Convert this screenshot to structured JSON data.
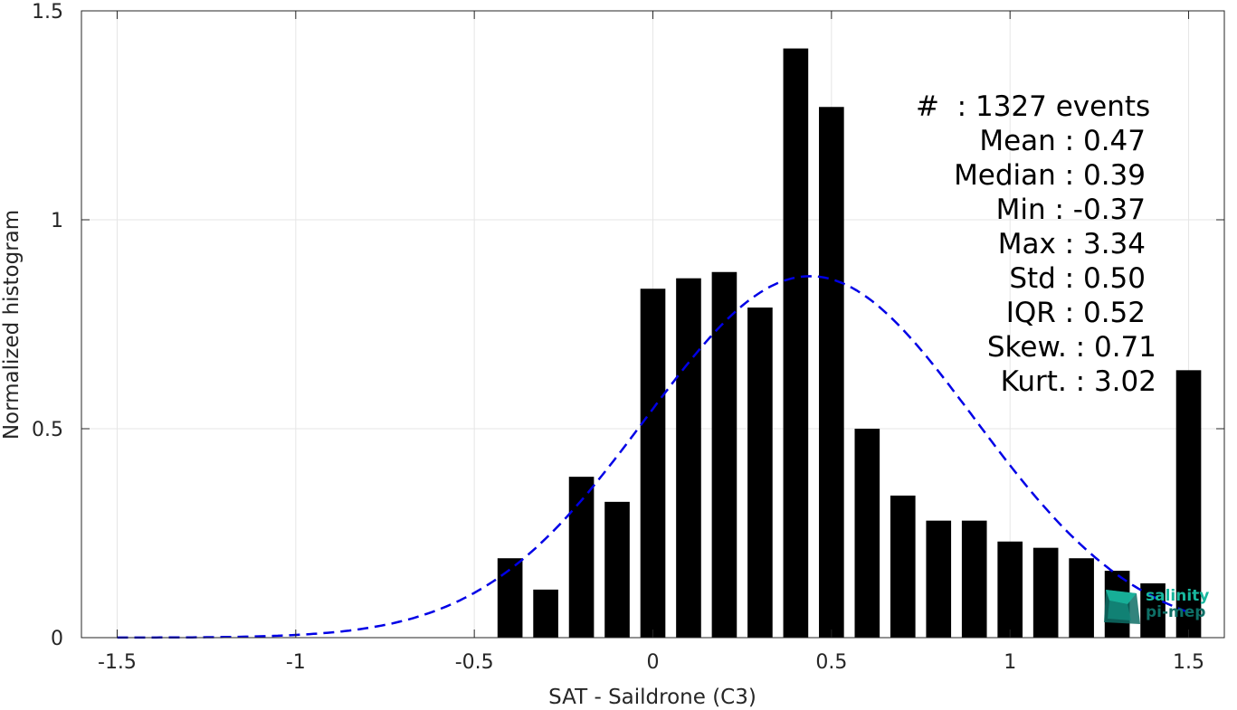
{
  "chart_data": {
    "type": "bar",
    "xlabel": "SAT - Saildrone (C3)",
    "ylabel": "Normalized histogram",
    "xlim": [
      -1.6,
      1.6
    ],
    "ylim": [
      0,
      1.5
    ],
    "xticks": [
      -1.5,
      -1,
      -0.5,
      0,
      0.5,
      1,
      1.5
    ],
    "xtick_labels": [
      "-1.5",
      "-1",
      "-0.5",
      "0",
      "0.5",
      "1",
      "1.5"
    ],
    "yticks": [
      0,
      0.5,
      1,
      1.5
    ],
    "ytick_labels": [
      "0",
      "0.5",
      "1",
      "1.5"
    ],
    "grid": true,
    "bar_color": "#000000",
    "bar_width": 0.07,
    "x": [
      -0.4,
      -0.3,
      -0.2,
      -0.1,
      0.0,
      0.1,
      0.2,
      0.3,
      0.4,
      0.5,
      0.6,
      0.7,
      0.8,
      0.9,
      1.0,
      1.1,
      1.2,
      1.3,
      1.4,
      1.5
    ],
    "values": [
      0.19,
      0.115,
      0.385,
      0.325,
      0.835,
      0.86,
      0.875,
      0.79,
      1.41,
      1.27,
      0.5,
      0.34,
      0.28,
      0.28,
      0.23,
      0.215,
      0.19,
      0.16,
      0.13,
      0.64
    ],
    "fit_curve": {
      "type": "normal",
      "mean": 0.44,
      "std": 0.46,
      "peak": 0.865,
      "color": "#0000e6",
      "style": "dashed",
      "x_range": [
        -1.5,
        1.5
      ]
    }
  },
  "stats": [
    "#  : 1327 events",
    "Mean : 0.47",
    "Median : 0.39",
    "Min : -0.37",
    "Max : 3.34",
    "Std : 0.50",
    "IQR : 0.52",
    "Skew. : 0.71",
    "Kurt. : 3.02"
  ],
  "logo": {
    "line1": "salinity",
    "line2": "pi-mep",
    "color_light": "#18b79e",
    "color_dark": "#0e6f66"
  }
}
